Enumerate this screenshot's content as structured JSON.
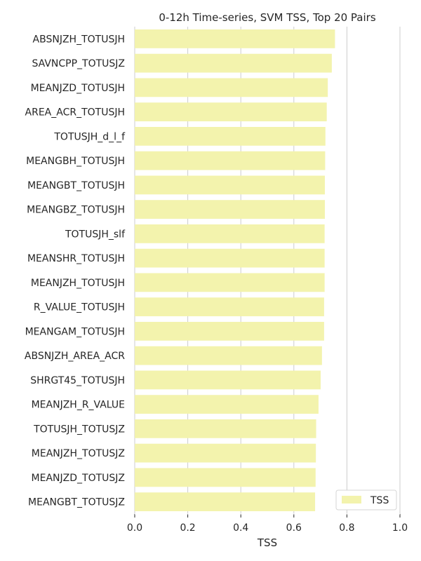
{
  "chart_data": {
    "type": "bar",
    "orientation": "horizontal",
    "title": "0-12h Time-series, SVM TSS, Top 20 Pairs",
    "xlabel": "TSS",
    "ylabel": "",
    "xlim": [
      0.0,
      1.0
    ],
    "xticks": [
      "0.0",
      "0.2",
      "0.4",
      "0.6",
      "0.8",
      "1.0"
    ],
    "grid": "vertical",
    "categories": [
      "ABSNJZH_TOTUSJH",
      "SAVNCPP_TOTUSJZ",
      "MEANJZD_TOTUSJH",
      "AREA_ACR_TOTUSJH",
      "TOTUSJH_d_l_f",
      "MEANGBH_TOTUSJH",
      "MEANGBT_TOTUSJH",
      "MEANGBZ_TOTUSJH",
      "TOTUSJH_slf",
      "MEANSHR_TOTUSJH",
      "MEANJZH_TOTUSJH",
      "R_VALUE_TOTUSJH",
      "MEANGAM_TOTUSJH",
      "ABSNJZH_AREA_ACR",
      "SHRGT45_TOTUSJH",
      "MEANJZH_R_VALUE",
      "TOTUSJH_TOTUSJZ",
      "MEANJZH_TOTUSJZ",
      "MEANJZD_TOTUSJZ",
      "MEANGBT_TOTUSJZ"
    ],
    "series": [
      {
        "name": "TSS",
        "color": "#f3f3ad",
        "values": [
          0.755,
          0.743,
          0.728,
          0.724,
          0.719,
          0.718,
          0.717,
          0.717,
          0.716,
          0.716,
          0.716,
          0.714,
          0.714,
          0.706,
          0.701,
          0.693,
          0.684,
          0.683,
          0.682,
          0.68
        ]
      }
    ],
    "legend": {
      "location": "bottom-right",
      "entries": [
        "TSS"
      ]
    }
  }
}
